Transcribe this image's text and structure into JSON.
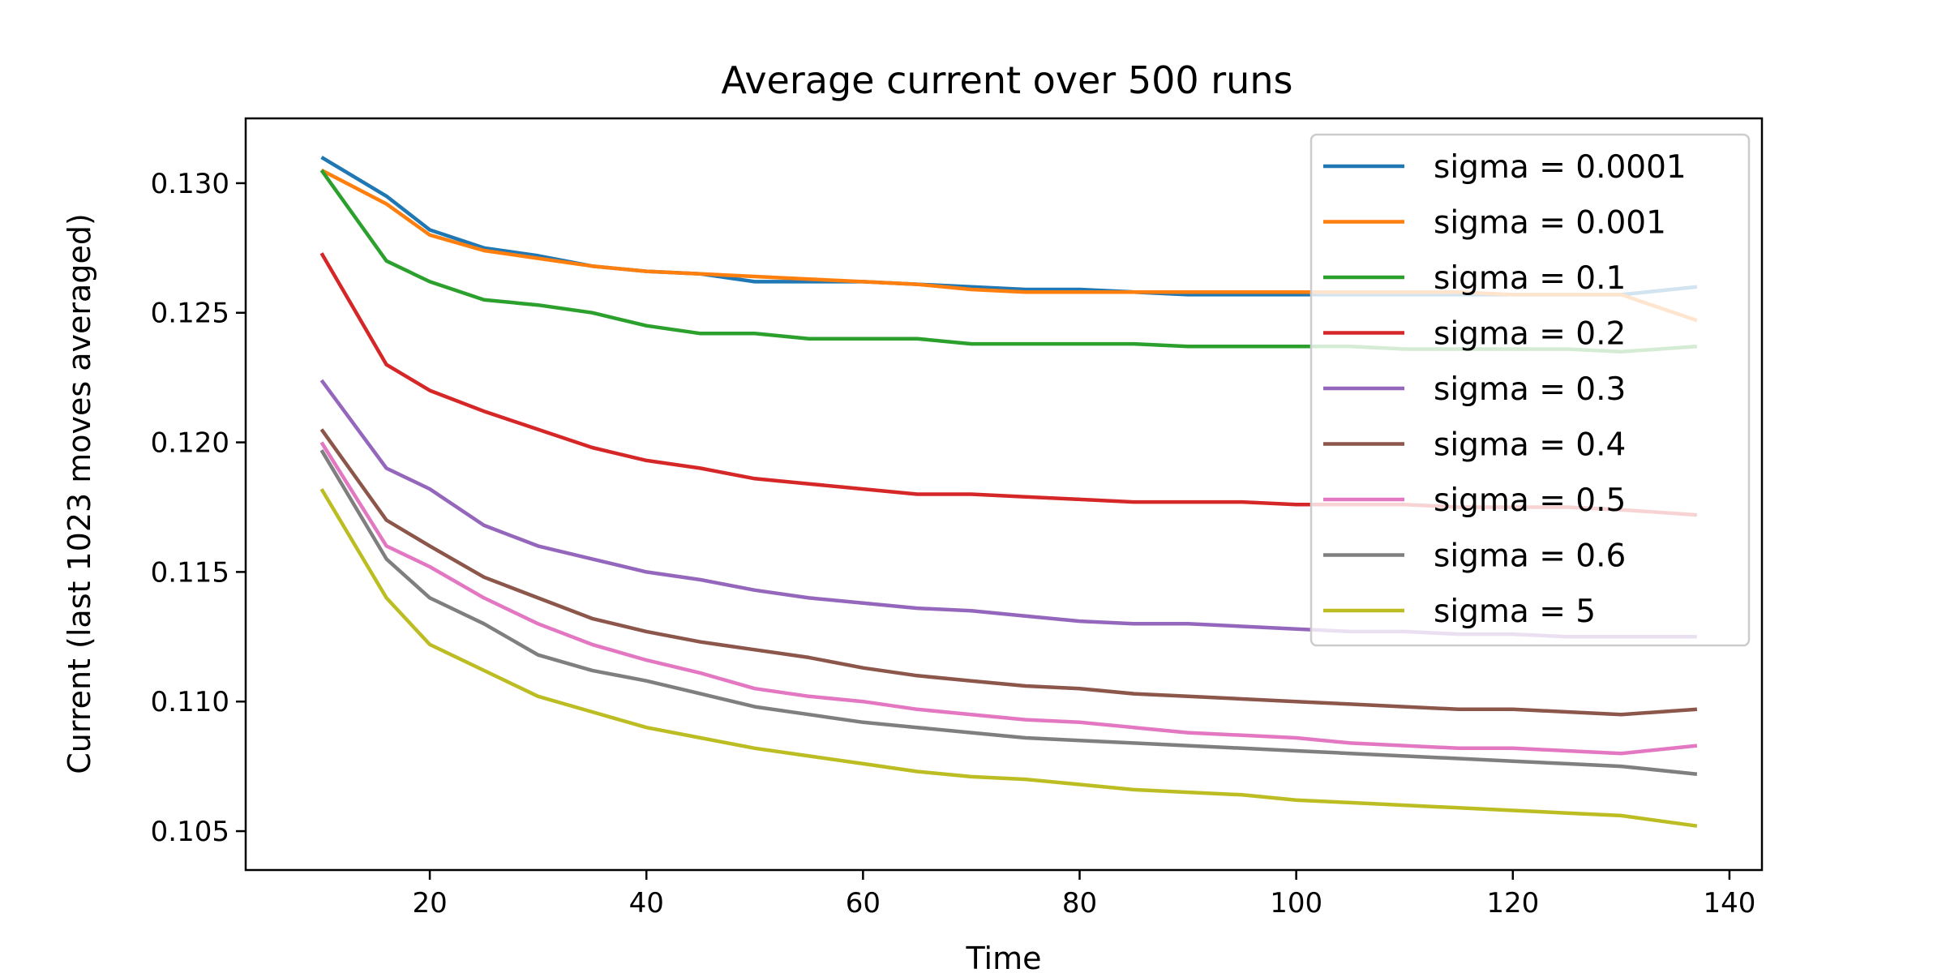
{
  "chart_data": {
    "type": "line",
    "title": "Average current over 500 runs",
    "xlabel": "Time",
    "ylabel": "Current (last 1023 moves averaged)",
    "xlim": [
      3,
      143
    ],
    "ylim": [
      0.1035,
      0.1325
    ],
    "x_ticks": [
      20,
      40,
      60,
      80,
      100,
      120,
      140
    ],
    "y_ticks": [
      0.105,
      0.11,
      0.115,
      0.12,
      0.125,
      0.13
    ],
    "y_tick_labels": [
      "0.105",
      "0.110",
      "0.115",
      "0.120",
      "0.125",
      "0.130"
    ],
    "grid": false,
    "legend_position": "upper right",
    "x": [
      10,
      16,
      20,
      25,
      30,
      35,
      40,
      45,
      50,
      55,
      60,
      65,
      70,
      75,
      80,
      85,
      90,
      95,
      100,
      105,
      110,
      115,
      120,
      125,
      130,
      137
    ],
    "series": [
      {
        "name": "sigma = 0.0001",
        "color": "#1f77b4",
        "values": [
          0.131,
          0.1295,
          0.1282,
          0.1275,
          0.1272,
          0.1268,
          0.1266,
          0.1265,
          0.1262,
          0.1262,
          0.1262,
          0.1261,
          0.126,
          0.1259,
          0.1259,
          0.1258,
          0.1257,
          0.1257,
          0.1257,
          0.1257,
          0.1257,
          0.1257,
          0.1257,
          0.1257,
          0.1257,
          0.126
        ]
      },
      {
        "name": "sigma = 0.001",
        "color": "#ff7f0e",
        "values": [
          0.1305,
          0.1292,
          0.128,
          0.1274,
          0.1271,
          0.1268,
          0.1266,
          0.1265,
          0.1264,
          0.1263,
          0.1262,
          0.1261,
          0.1259,
          0.1258,
          0.1258,
          0.1258,
          0.1258,
          0.1258,
          0.1258,
          0.1258,
          0.1258,
          0.1258,
          0.1257,
          0.1257,
          0.1257,
          0.1247
        ]
      },
      {
        "name": "sigma = 0.1",
        "color": "#2ca02c",
        "values": [
          0.1305,
          0.127,
          0.1262,
          0.1255,
          0.1253,
          0.125,
          0.1245,
          0.1242,
          0.1242,
          0.124,
          0.124,
          0.124,
          0.1238,
          0.1238,
          0.1238,
          0.1238,
          0.1237,
          0.1237,
          0.1237,
          0.1237,
          0.1236,
          0.1236,
          0.1236,
          0.1236,
          0.1235,
          0.1237
        ]
      },
      {
        "name": "sigma = 0.2",
        "color": "#d62728",
        "values": [
          0.1273,
          0.123,
          0.122,
          0.1212,
          0.1205,
          0.1198,
          0.1193,
          0.119,
          0.1186,
          0.1184,
          0.1182,
          0.118,
          0.118,
          0.1179,
          0.1178,
          0.1177,
          0.1177,
          0.1177,
          0.1176,
          0.1176,
          0.1176,
          0.1175,
          0.1175,
          0.1175,
          0.1174,
          0.1172
        ]
      },
      {
        "name": "sigma = 0.3",
        "color": "#9467bd",
        "values": [
          0.1224,
          0.119,
          0.1182,
          0.1168,
          0.116,
          0.1155,
          0.115,
          0.1147,
          0.1143,
          0.114,
          0.1138,
          0.1136,
          0.1135,
          0.1133,
          0.1131,
          0.113,
          0.113,
          0.1129,
          0.1128,
          0.1127,
          0.1127,
          0.1126,
          0.1126,
          0.1125,
          0.1125,
          0.1125
        ]
      },
      {
        "name": "sigma = 0.4",
        "color": "#8c564b",
        "values": [
          0.1205,
          0.117,
          0.116,
          0.1148,
          0.114,
          0.1132,
          0.1127,
          0.1123,
          0.112,
          0.1117,
          0.1113,
          0.111,
          0.1108,
          0.1106,
          0.1105,
          0.1103,
          0.1102,
          0.1101,
          0.11,
          0.1099,
          0.1098,
          0.1097,
          0.1097,
          0.1096,
          0.1095,
          0.1097
        ]
      },
      {
        "name": "sigma = 0.5",
        "color": "#e377c2",
        "values": [
          0.12,
          0.116,
          0.1152,
          0.114,
          0.113,
          0.1122,
          0.1116,
          0.1111,
          0.1105,
          0.1102,
          0.11,
          0.1097,
          0.1095,
          0.1093,
          0.1092,
          0.109,
          0.1088,
          0.1087,
          0.1086,
          0.1084,
          0.1083,
          0.1082,
          0.1082,
          0.1081,
          0.108,
          0.1083
        ]
      },
      {
        "name": "sigma = 0.6",
        "color": "#7f7f7f",
        "values": [
          0.1197,
          0.1155,
          0.114,
          0.113,
          0.1118,
          0.1112,
          0.1108,
          0.1103,
          0.1098,
          0.1095,
          0.1092,
          0.109,
          0.1088,
          0.1086,
          0.1085,
          0.1084,
          0.1083,
          0.1082,
          0.1081,
          0.108,
          0.1079,
          0.1078,
          0.1077,
          0.1076,
          0.1075,
          0.1072
        ]
      },
      {
        "name": "sigma = 5",
        "color": "#bcbd22",
        "values": [
          0.1182,
          0.114,
          0.1122,
          0.1112,
          0.1102,
          0.1096,
          0.109,
          0.1086,
          0.1082,
          0.1079,
          0.1076,
          0.1073,
          0.1071,
          0.107,
          0.1068,
          0.1066,
          0.1065,
          0.1064,
          0.1062,
          0.1061,
          0.106,
          0.1059,
          0.1058,
          0.1057,
          0.1056,
          0.1052
        ]
      }
    ]
  }
}
